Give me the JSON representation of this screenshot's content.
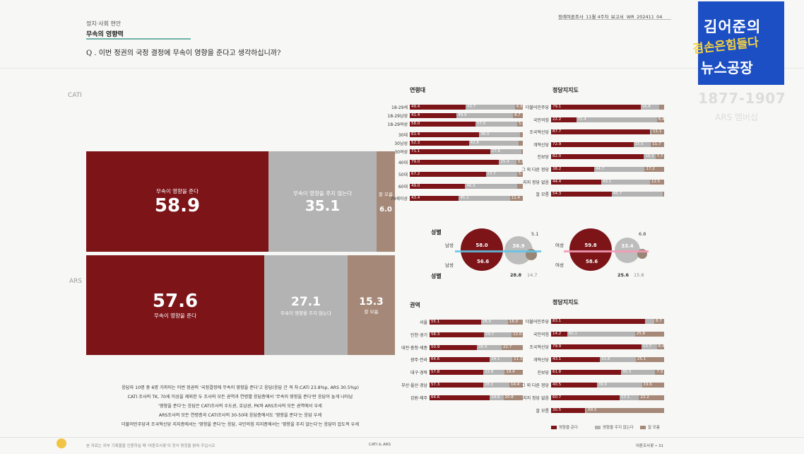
{
  "header": {
    "category": "정치·사회 현안",
    "section": "무속의 영향력",
    "question": "Q . 이번 정권의 국정 결정에 무속이 영향을 준다고 생각하십니까?",
    "report_id": "정례여론조사_11월 4주차_보고서",
    "report_code": "WR_202411_04"
  },
  "labels": {
    "cati": "CATI",
    "ars": "ARS"
  },
  "colors": {
    "yes": "#7c1418",
    "no": "#b3b3b3",
    "dk": "#a58878"
  },
  "chart_data": [
    {
      "type": "bar",
      "title": "CATI",
      "series": [
        {
          "name": "무속이 영향을 준다",
          "values": [
            58.9
          ]
        },
        {
          "name": "무속이 영향을 주지 않는다",
          "values": [
            35.1
          ]
        },
        {
          "name": "잘 모름",
          "values": [
            6.0
          ]
        }
      ]
    },
    {
      "type": "bar",
      "title": "ARS",
      "series": [
        {
          "name": "무속이 영향을 준다",
          "values": [
            57.6
          ]
        },
        {
          "name": "무속이 영향을 주지 않는다",
          "values": [
            27.1
          ]
        },
        {
          "name": "잘 모름",
          "values": [
            15.3
          ]
        }
      ]
    },
    {
      "type": "bar",
      "title": "연령대",
      "categories": [
        "18-29세",
        "18-29남성",
        "18-29여성",
        "30대",
        "30남성",
        "30여성",
        "40대",
        "50대",
        "60대",
        "70세이상"
      ],
      "rows": [
        [
          49.4,
          43.7,
          6.9
        ],
        [
          41.4,
          49.9,
          8.7
        ],
        [
          58.0,
          37.0,
          5.0
        ],
        [
          61.4,
          36.0,
          2.6
        ],
        [
          52.3,
          43.8,
          3.9
        ],
        [
          71.1,
          27.6,
          1.3
        ],
        [
          79.0,
          15.4,
          5.6
        ],
        [
          67.2,
          27.7,
          5.1
        ],
        [
          49.0,
          46.3,
          4.7
        ],
        [
          43.4,
          45.2,
          11.4
        ]
      ],
      "labels": [
        [
          "49.4",
          "43.7",
          "6.9"
        ],
        [
          "41.4",
          "49.9",
          "8.7"
        ],
        [
          "58.0",
          "37.0",
          "5.0"
        ],
        [
          "61.4",
          "36.0",
          ""
        ],
        [
          "52.3",
          "43.8",
          ""
        ],
        [
          "71.1",
          "27.6",
          ""
        ],
        [
          "79.0",
          "15.4",
          "5.6"
        ],
        [
          "67.2",
          "27.7",
          "5.1"
        ],
        [
          "49.0",
          "46.3",
          ""
        ],
        [
          "43.4",
          "45.2",
          "11.4"
        ]
      ]
    },
    {
      "type": "bar",
      "title": "정당지지도",
      "categories": [
        "더불어민주당",
        "국민의힘",
        "조국혁신당",
        "개혁신당",
        "진보당",
        "그 외 다른 정당",
        "지지 정당 없음",
        "잘 모름"
      ],
      "rows": [
        [
          79.1,
          16.8,
          4.1
        ],
        [
          22.2,
          71.4,
          6.4
        ],
        [
          87.7,
          1.2,
          11.1
        ],
        [
          72.9,
          15.5,
          11.7
        ],
        [
          82.0,
          10.3,
          7.7
        ],
        [
          38.2,
          44.7,
          17.2
        ],
        [
          44.4,
          43.1,
          12.5
        ],
        [
          54.3,
          45.7,
          0
        ]
      ],
      "labels": [
        [
          "79.1",
          "16.8",
          ""
        ],
        [
          "22.2",
          "71.4",
          "6.4"
        ],
        [
          "87.7",
          "",
          "11.1"
        ],
        [
          "72.9",
          "15.5",
          "11.7"
        ],
        [
          "82.0",
          "10.3",
          "7.7"
        ],
        [
          "38.2",
          "44.7",
          "17.2"
        ],
        [
          "44.4",
          "43.1",
          "12.5"
        ],
        [
          "54.3",
          "45.7",
          ""
        ]
      ]
    },
    {
      "type": "bar",
      "title": "권역",
      "categories": [
        "서울",
        "인천·경기",
        "대전·충청·세종",
        "광주·전라",
        "대구·경북",
        "부산·울산·경남",
        "강원·제주"
      ],
      "rows": [
        [
          55.1,
          28.9,
          16.0
        ],
        [
          58.3,
          29.7,
          12.0
        ],
        [
          50.9,
          26.4,
          22.7
        ],
        [
          64.6,
          24.1,
          11.3
        ],
        [
          57.8,
          22.8,
          19.4
        ],
        [
          57.3,
          28.2,
          14.4
        ],
        [
          64.6,
          14.6,
          20.8
        ]
      ],
      "labels": [
        [
          "55.1",
          "28.9",
          "16.0"
        ],
        [
          "58.3",
          "29.7",
          "12.0"
        ],
        [
          "50.9",
          "26.4",
          "22.7"
        ],
        [
          "64.6",
          "24.1",
          "11.3"
        ],
        [
          "57.8",
          "22.8",
          "19.4"
        ],
        [
          "57.3",
          "28.2",
          "14.4"
        ],
        [
          "64.6",
          "14.6",
          "20.8"
        ]
      ]
    },
    {
      "type": "bar",
      "title": "정당지지도",
      "categories": [
        "더불어민주당",
        "국민의힘",
        "조국혁신당",
        "개혁신당",
        "진보당",
        "그 외 다른 정당",
        "지지 정당 없음",
        "잘 모름"
      ],
      "rows": [
        [
          83.1,
          8.2,
          8.7
        ],
        [
          14.2,
          60.1,
          25.8
        ],
        [
          79.9,
          13.7,
          6.4
        ],
        [
          43.1,
          31.8,
          25.1
        ],
        [
          61.8,
          30.3,
          7.9
        ],
        [
          40.5,
          39.9,
          19.6
        ],
        [
          60.7,
          17.1,
          22.2
        ],
        [
          30.5,
          0,
          69.5
        ]
      ],
      "labels": [
        [
          "83.1",
          "",
          "8.7"
        ],
        [
          "14.2",
          "60.1",
          "25.8"
        ],
        [
          "79.9",
          "13.7",
          "6.4"
        ],
        [
          "43.1",
          "31.8",
          "25.1"
        ],
        [
          "61.8",
          "30.3",
          "7.9"
        ],
        [
          "40.5",
          "39.9",
          "19.6"
        ],
        [
          "60.7",
          "17.1",
          "22.2"
        ],
        [
          "30.5",
          "",
          "69.5"
        ]
      ]
    },
    {
      "type": "scatter",
      "title": "성별",
      "groups": [
        {
          "label": "남성",
          "cati": [
            58.0,
            36.9,
            5.1
          ],
          "ars": [
            56.6,
            28.8,
            14.7
          ]
        },
        {
          "label": "여성",
          "cati": [
            59.8,
            33.4,
            6.8
          ],
          "ars": [
            58.6,
            25.6,
            15.8
          ]
        }
      ]
    }
  ],
  "gender_text": {
    "title": "성별",
    "title_bottom": "성별",
    "male": "남성",
    "female": "여성",
    "m_yes_c": "58.0",
    "m_no_c": "36.9",
    "m_dk_c": "5.1",
    "m_yes_a": "56.6",
    "m_no_a": "28.8",
    "m_dk_a": "14.7",
    "f_yes_c": "59.8",
    "f_no_c": "33.4",
    "f_dk_c": "6.8",
    "f_yes_a": "58.6",
    "f_no_a": "25.6",
    "f_dk_a": "15.8"
  },
  "big_cati": {
    "yes_label": "무속이 영향을 준다",
    "yes_val": "58.9",
    "no_label": "무속이 영향을 주지 않는다",
    "no_val": "35.1",
    "dk_label": "잘 모름",
    "dk_val": "6.0"
  },
  "big_ars": {
    "yes_label": "무속이 영향을 준다",
    "yes_val": "57.6",
    "no_label": "무속이 영향을 주지 않는다",
    "no_val": "27.1",
    "dk_label": "잘 모름",
    "dk_val": "15.3"
  },
  "footnote": [
    "응답자 10명 중 6명 가까이는 이번 정권의 '국정결정에 무속이 영향을 준다'고 응답(응답 간 격 차:CATI 23.8%p, ARS 30.5%p)",
    "CATI 조사의 TK, 70세 이상을 제외한 두 조사의 모든 권역과 연령별 응답층에서 '무속이 영향을 준다'란 응답이 높게 나타남",
    "'영향을 준다'는 응답은 CATI조사의 수도권, 호남권, PK와 ARS조사의 모든 권역에서 우세",
    "ARS조사의 모든 연령층과 CATI조사의 30-50대 응답층에서도 '영향을 준다'는 응답 우세",
    "더불어민주당과 조국혁신당 지지층에서는 '영향을 준다'는 응답, 국민의힘 지지층에서는 '영향을 주지 않는다'는 응답이 압도적 우세"
  ],
  "legend": {
    "yes": "영향을 준다",
    "no": "영향을 주지 않는다",
    "dk": "잘 모름"
  },
  "footer": {
    "left": "본 자료는 외부 기록물을 인용하실 때 '여론조사꽃'의 정식 명칭을 밝혀 주십시오",
    "center": "CATI & ARS",
    "right": "여론조사꽃 • 31"
  },
  "logo": {
    "line1": "김어준의",
    "line2": "겸손은힘들다",
    "line3": "뉴스공장",
    "phone": "1877-1907",
    "sub": "ARS 멤버십"
  }
}
